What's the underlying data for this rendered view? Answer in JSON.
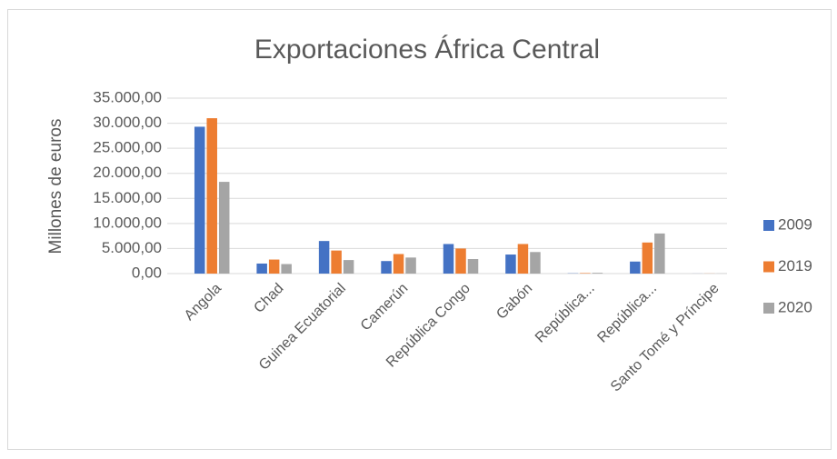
{
  "chart_data": {
    "type": "bar",
    "title": "Exportaciones África Central",
    "y_label": "Millones de euros",
    "categories": [
      "Angola",
      "Chad",
      "Guinea Ecuatorial",
      "Camerún",
      "República Congo",
      "Gabón",
      "República...",
      "República...",
      "Santo Tomé y Príncipe"
    ],
    "series": [
      {
        "name": "2009",
        "color": "#4472c4",
        "values": [
          29300,
          2000,
          6500,
          2500,
          5900,
          3800,
          50,
          2400,
          10
        ]
      },
      {
        "name": "2019",
        "color": "#ed7d31",
        "values": [
          31000,
          2800,
          4600,
          3900,
          5000,
          5900,
          100,
          6200,
          20
        ]
      },
      {
        "name": "2020",
        "color": "#a5a5a5",
        "values": [
          18300,
          1900,
          2700,
          3200,
          2900,
          4300,
          150,
          8000,
          20
        ]
      }
    ],
    "ylim": [
      0,
      35000
    ],
    "yticks": [
      {
        "value": 0,
        "label": "0,00"
      },
      {
        "value": 5000,
        "label": "5.000,00"
      },
      {
        "value": 10000,
        "label": "10.000,00"
      },
      {
        "value": 15000,
        "label": "15.000,00"
      },
      {
        "value": 20000,
        "label": "20.000,00"
      },
      {
        "value": 25000,
        "label": "25.000,00"
      },
      {
        "value": 30000,
        "label": "30.000,00"
      },
      {
        "value": 35000,
        "label": "35.000,00"
      }
    ],
    "grid": true,
    "legend": "right"
  }
}
